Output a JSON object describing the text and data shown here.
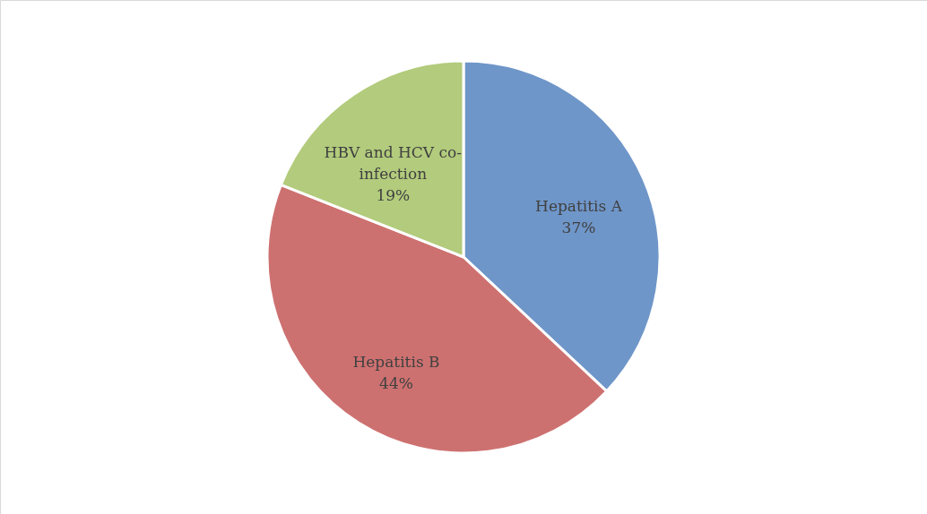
{
  "chart_data": {
    "type": "pie",
    "categories": [
      "Hepatitis A",
      "Hepatitis B",
      "HBV and HCV co-infection"
    ],
    "values": [
      37,
      44,
      19
    ],
    "colors": [
      "#6f96c9",
      "#cd7170",
      "#b2cb7c"
    ],
    "value_labels": [
      "37%",
      "44%",
      "19%"
    ],
    "legend": false
  }
}
